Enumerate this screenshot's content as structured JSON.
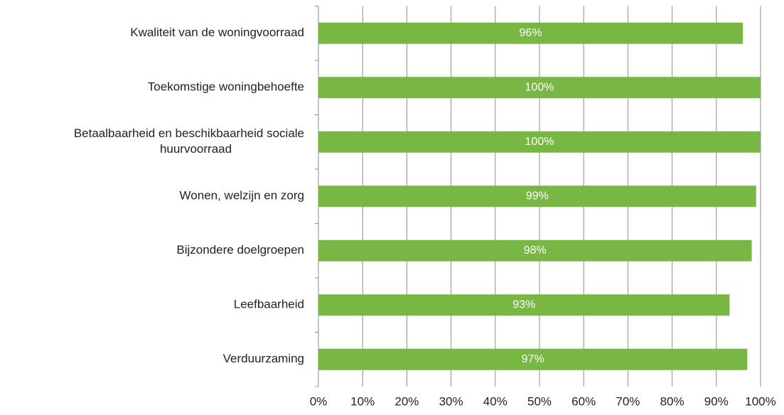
{
  "chart_data": {
    "type": "bar",
    "orientation": "horizontal",
    "categories": [
      "Kwaliteit van de woningvoorraad",
      "Toekomstige woningbehoefte",
      "Betaalbaarheid en beschikbaarheid sociale huurvoorraad",
      "Wonen, welzijn en zorg",
      "Bijzondere doelgroepen",
      "Leefbaarheid",
      "Verduurzaming"
    ],
    "values": [
      96,
      100,
      100,
      99,
      98,
      93,
      97
    ],
    "value_labels": [
      "96%",
      "100%",
      "100%",
      "99%",
      "98%",
      "93%",
      "97%"
    ],
    "color": "#79b745",
    "xlim": [
      0,
      100
    ],
    "xticks": [
      {
        "value": 0,
        "label": "0%"
      },
      {
        "value": 10,
        "label": "10%"
      },
      {
        "value": 20,
        "label": "20%"
      },
      {
        "value": 30,
        "label": "30%"
      },
      {
        "value": 40,
        "label": "40%"
      },
      {
        "value": 50,
        "label": "50%"
      },
      {
        "value": 60,
        "label": "60%"
      },
      {
        "value": 70,
        "label": "70%"
      },
      {
        "value": 80,
        "label": "80%"
      },
      {
        "value": 90,
        "label": "90%"
      },
      {
        "value": 100,
        "label": "100%"
      }
    ],
    "grid": true
  }
}
